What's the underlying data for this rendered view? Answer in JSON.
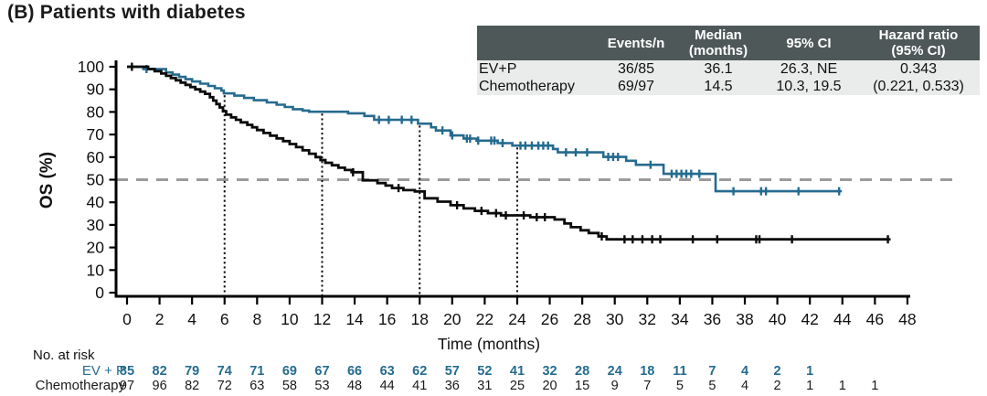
{
  "title": "(B) Patients with diabetes",
  "stats_table": {
    "header_bg": "#4f5859",
    "row_bg": "#e9eceb",
    "headers": {
      "group": "",
      "events": "Events/n",
      "median": "Median\n(months)",
      "ci": "95% CI",
      "hr": "Hazard ratio\n(95% CI)"
    },
    "rows": [
      {
        "name": "EV+P",
        "events": "36/85",
        "median": "36.1",
        "ci": "26.3, NE",
        "hr": "0.343"
      },
      {
        "name": "Chemotherapy",
        "events": "69/97",
        "median": "14.5",
        "ci": "10.3, 19.5",
        "hr": "(0.221, 0.533)"
      }
    ]
  },
  "chart_data": {
    "type": "line",
    "subtype": "kaplan-meier-step",
    "title": "(B) Patients with diabetes",
    "xlabel": "Time (months)",
    "ylabel": "OS (%)",
    "xlim": [
      0,
      48
    ],
    "ylim": [
      0,
      100
    ],
    "xticks": [
      0,
      2,
      4,
      6,
      8,
      10,
      12,
      14,
      16,
      18,
      20,
      22,
      24,
      26,
      28,
      30,
      32,
      34,
      36,
      38,
      40,
      42,
      44,
      46,
      48
    ],
    "yticks": [
      0,
      10,
      20,
      30,
      40,
      50,
      60,
      70,
      80,
      90,
      100
    ],
    "grid": false,
    "legend_position": "none",
    "reference_lines": {
      "horizontal_dashed": {
        "y": 50,
        "color": "#9b9b9b"
      },
      "vertical_dotted_x": [
        6,
        12,
        18,
        24
      ],
      "vertical_dotted_color": "#111111"
    },
    "series": [
      {
        "name": "EV+P",
        "color": "#256b8f",
        "steps": [
          [
            0,
            100
          ],
          [
            1.0,
            99
          ],
          [
            2.4,
            97.5
          ],
          [
            2.8,
            96.5
          ],
          [
            3.2,
            95.5
          ],
          [
            3.6,
            94.5
          ],
          [
            4.0,
            93.5
          ],
          [
            4.5,
            92.5
          ],
          [
            5.0,
            91.5
          ],
          [
            5.4,
            90.5
          ],
          [
            5.8,
            89.5
          ],
          [
            5.95,
            88.2
          ],
          [
            6.6,
            87.2
          ],
          [
            7.2,
            86.2
          ],
          [
            7.8,
            85.2
          ],
          [
            8.6,
            84.2
          ],
          [
            9.2,
            83.2
          ],
          [
            9.7,
            82.2
          ],
          [
            10.2,
            81.2
          ],
          [
            10.8,
            80.6
          ],
          [
            11.2,
            80.1
          ],
          [
            13.6,
            79.4
          ],
          [
            14.6,
            78.2
          ],
          [
            15.2,
            76.5
          ],
          [
            17.9,
            74.8
          ],
          [
            18.7,
            73.2
          ],
          [
            19.0,
            71.8
          ],
          [
            19.9,
            69.6
          ],
          [
            20.7,
            68.2
          ],
          [
            21.5,
            67.3
          ],
          [
            22.8,
            66.2
          ],
          [
            23.7,
            65.1
          ],
          [
            26.2,
            63.6
          ],
          [
            26.5,
            62.1
          ],
          [
            29.3,
            60.1
          ],
          [
            30.7,
            58.4
          ],
          [
            31.3,
            56.6
          ],
          [
            33.0,
            52.6
          ],
          [
            36.2,
            44.9
          ],
          [
            43.9,
            44.9
          ]
        ],
        "censor_times": [
          1.2,
          15.5,
          16.1,
          16.9,
          17.5,
          19.4,
          20.0,
          20.9,
          21.1,
          21.6,
          22.4,
          22.6,
          23.1,
          24.2,
          24.5,
          24.9,
          25.3,
          25.6,
          25.9,
          27.0,
          27.6,
          28.3,
          29.6,
          29.9,
          30.2,
          32.2,
          33.5,
          33.8,
          34.1,
          34.4,
          34.7,
          35.2,
          37.3,
          39.0,
          39.3,
          41.3,
          43.8
        ]
      },
      {
        "name": "Chemotherapy",
        "color": "#0b0b0b",
        "steps": [
          [
            0,
            100
          ],
          [
            1.3,
            99
          ],
          [
            1.7,
            98
          ],
          [
            2.1,
            97
          ],
          [
            2.4,
            96
          ],
          [
            2.7,
            95
          ],
          [
            3.0,
            94
          ],
          [
            3.3,
            93
          ],
          [
            3.6,
            92
          ],
          [
            3.9,
            91
          ],
          [
            4.2,
            90
          ],
          [
            4.5,
            89
          ],
          [
            4.8,
            88
          ],
          [
            5.1,
            86.5
          ],
          [
            5.3,
            85
          ],
          [
            5.5,
            83.5
          ],
          [
            5.7,
            82
          ],
          [
            5.9,
            80.3
          ],
          [
            6.1,
            78.8
          ],
          [
            6.4,
            77.6
          ],
          [
            6.7,
            76.5
          ],
          [
            7.0,
            75.4
          ],
          [
            7.4,
            74.3
          ],
          [
            7.7,
            73.2
          ],
          [
            8.0,
            72.0
          ],
          [
            8.4,
            70.7
          ],
          [
            8.8,
            69.5
          ],
          [
            9.2,
            68.3
          ],
          [
            9.6,
            67.1
          ],
          [
            10.0,
            65.8
          ],
          [
            10.4,
            64.4
          ],
          [
            10.8,
            63.0
          ],
          [
            11.2,
            61.5
          ],
          [
            11.6,
            60.0
          ],
          [
            11.9,
            58.7
          ],
          [
            12.2,
            57.5
          ],
          [
            12.6,
            56.4
          ],
          [
            13.0,
            55.3
          ],
          [
            13.4,
            54.3
          ],
          [
            13.9,
            53.3
          ],
          [
            14.5,
            49.7
          ],
          [
            15.4,
            48.5
          ],
          [
            15.9,
            47.4
          ],
          [
            16.3,
            46.3
          ],
          [
            17.0,
            45.4
          ],
          [
            17.7,
            44.8
          ],
          [
            18.3,
            41.8
          ],
          [
            19.1,
            40.3
          ],
          [
            19.9,
            38.7
          ],
          [
            20.7,
            37.3
          ],
          [
            21.4,
            36.2
          ],
          [
            22.2,
            35.2
          ],
          [
            23.0,
            34.2
          ],
          [
            24.8,
            33.4
          ],
          [
            26.3,
            32.4
          ],
          [
            26.9,
            30.6
          ],
          [
            27.3,
            29.0
          ],
          [
            27.9,
            27.6
          ],
          [
            28.4,
            26.4
          ],
          [
            29.0,
            24.9
          ],
          [
            29.5,
            23.6
          ],
          [
            46.9,
            23.6
          ]
        ],
        "censor_times": [
          0.3,
          13.9,
          16.7,
          20.3,
          21.8,
          22.7,
          23.3,
          24.4,
          25.2,
          25.7,
          29.2,
          30.6,
          31.1,
          31.7,
          32.3,
          32.8,
          34.8,
          36.3,
          38.7,
          38.9,
          40.9,
          46.8
        ]
      }
    ]
  },
  "risk_table": {
    "label": "No. at risk",
    "time_step": 2,
    "rows": [
      {
        "name": "EV + P",
        "color": "#256b8f",
        "bold": true,
        "counts": [
          85,
          82,
          79,
          74,
          71,
          69,
          67,
          66,
          63,
          62,
          57,
          52,
          41,
          32,
          28,
          24,
          18,
          11,
          7,
          4,
          2,
          1
        ]
      },
      {
        "name": "Chemotherapy",
        "color": "#1a1a1a",
        "bold": false,
        "counts": [
          97,
          96,
          82,
          72,
          63,
          58,
          53,
          48,
          44,
          41,
          36,
          31,
          25,
          20,
          15,
          9,
          7,
          5,
          5,
          4,
          2,
          1,
          1,
          1
        ]
      }
    ]
  }
}
